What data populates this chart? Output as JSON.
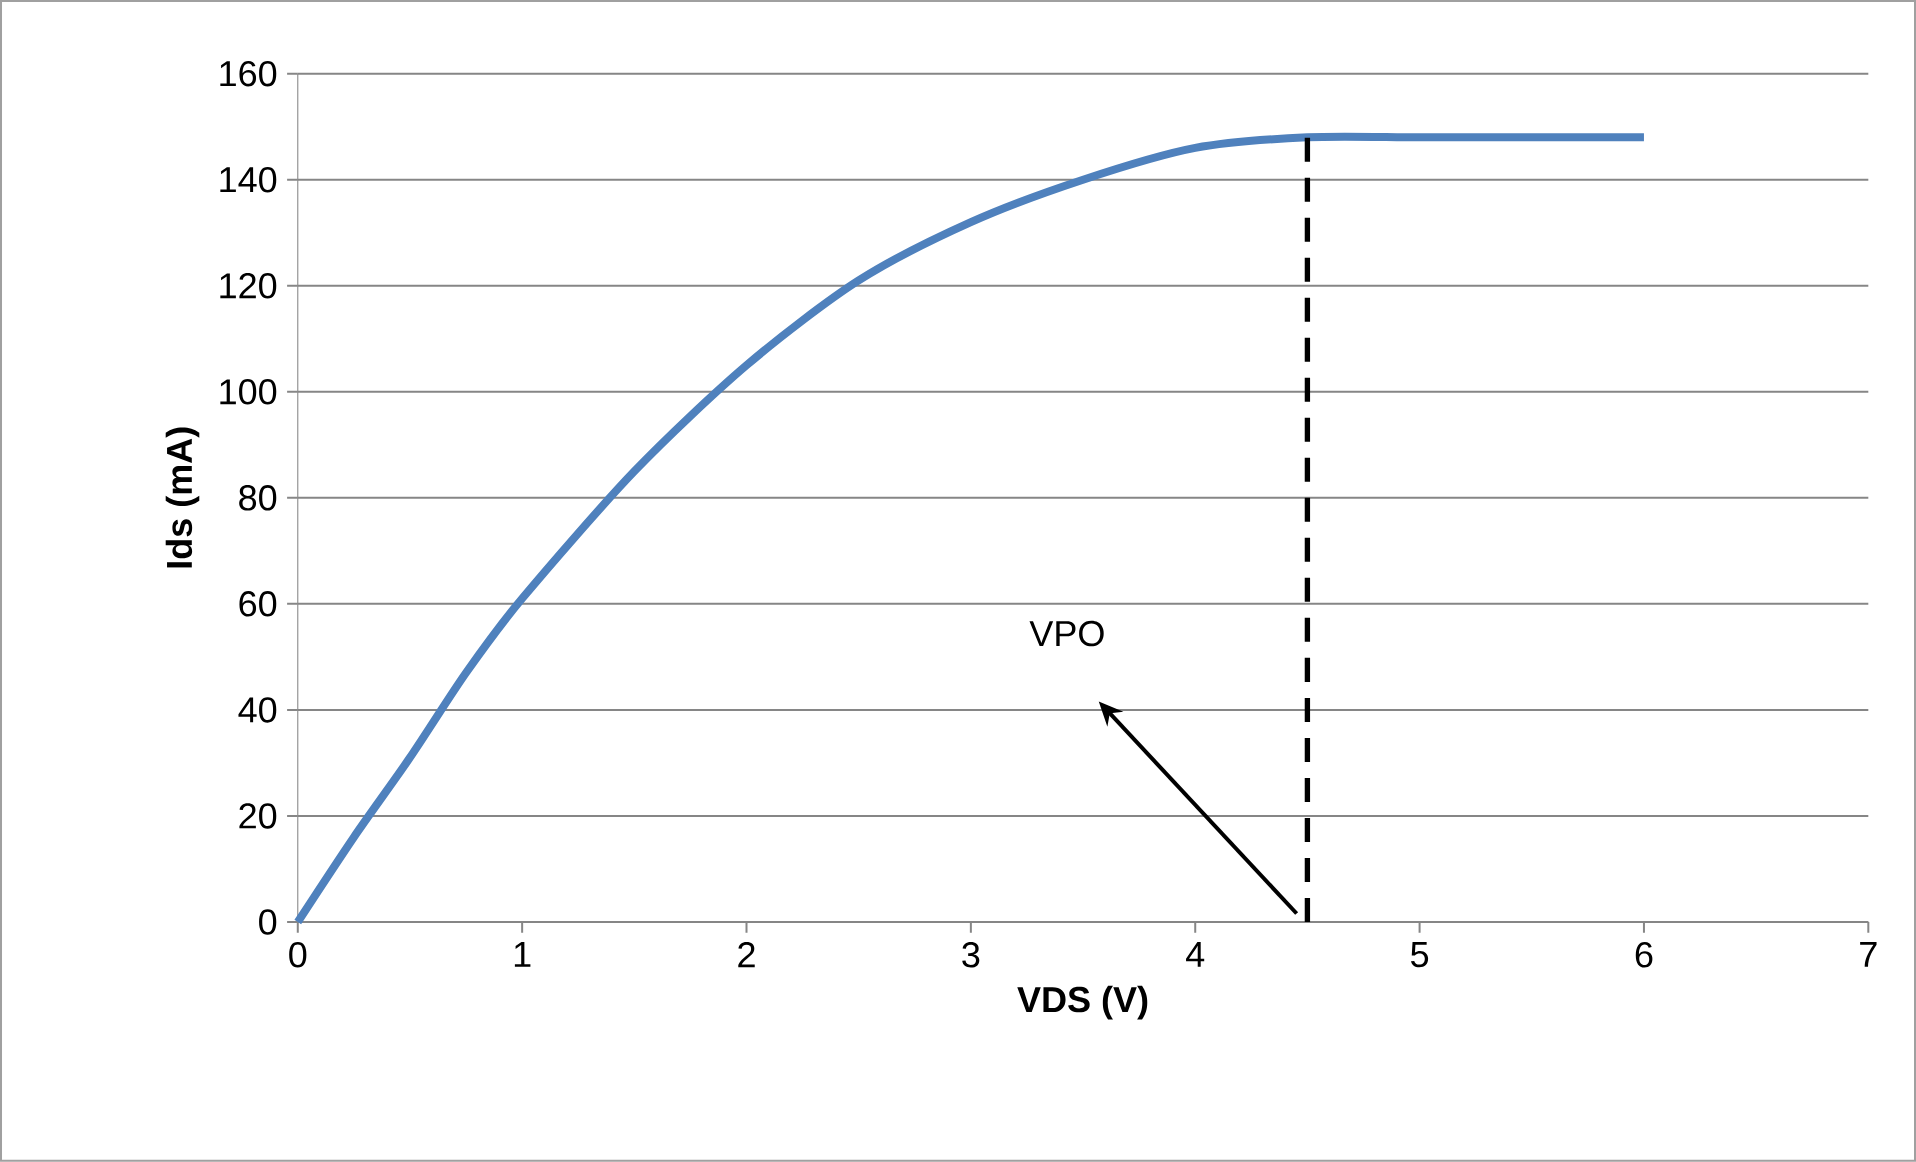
{
  "chart_data": {
    "type": "line",
    "xlabel": "VDS (V)",
    "ylabel": "Ids (mA)",
    "x": [
      0,
      0.25,
      0.5,
      0.75,
      1,
      1.5,
      2,
      2.5,
      3,
      3.5,
      4,
      4.5,
      5,
      5.5,
      6
    ],
    "series": [
      {
        "color": "#4f81bd",
        "values": [
          0,
          16,
          31,
          47,
          61,
          85,
          105,
          121,
          132,
          140,
          146,
          148,
          148,
          148,
          148
        ]
      }
    ],
    "xlim": [
      0,
      7
    ],
    "xticks": [
      0,
      1,
      2,
      3,
      4,
      5,
      6,
      7
    ],
    "ylim": [
      0,
      160
    ],
    "yticks": [
      0,
      20,
      40,
      60,
      80,
      100,
      120,
      140,
      160
    ],
    "grid": "y",
    "marker": "none",
    "line_style": "solid",
    "ref_lines": [
      {
        "axis": "x",
        "value": 4.5,
        "line_style": "dashed",
        "color": "#000000"
      }
    ],
    "annotations": [
      "VPO"
    ]
  }
}
